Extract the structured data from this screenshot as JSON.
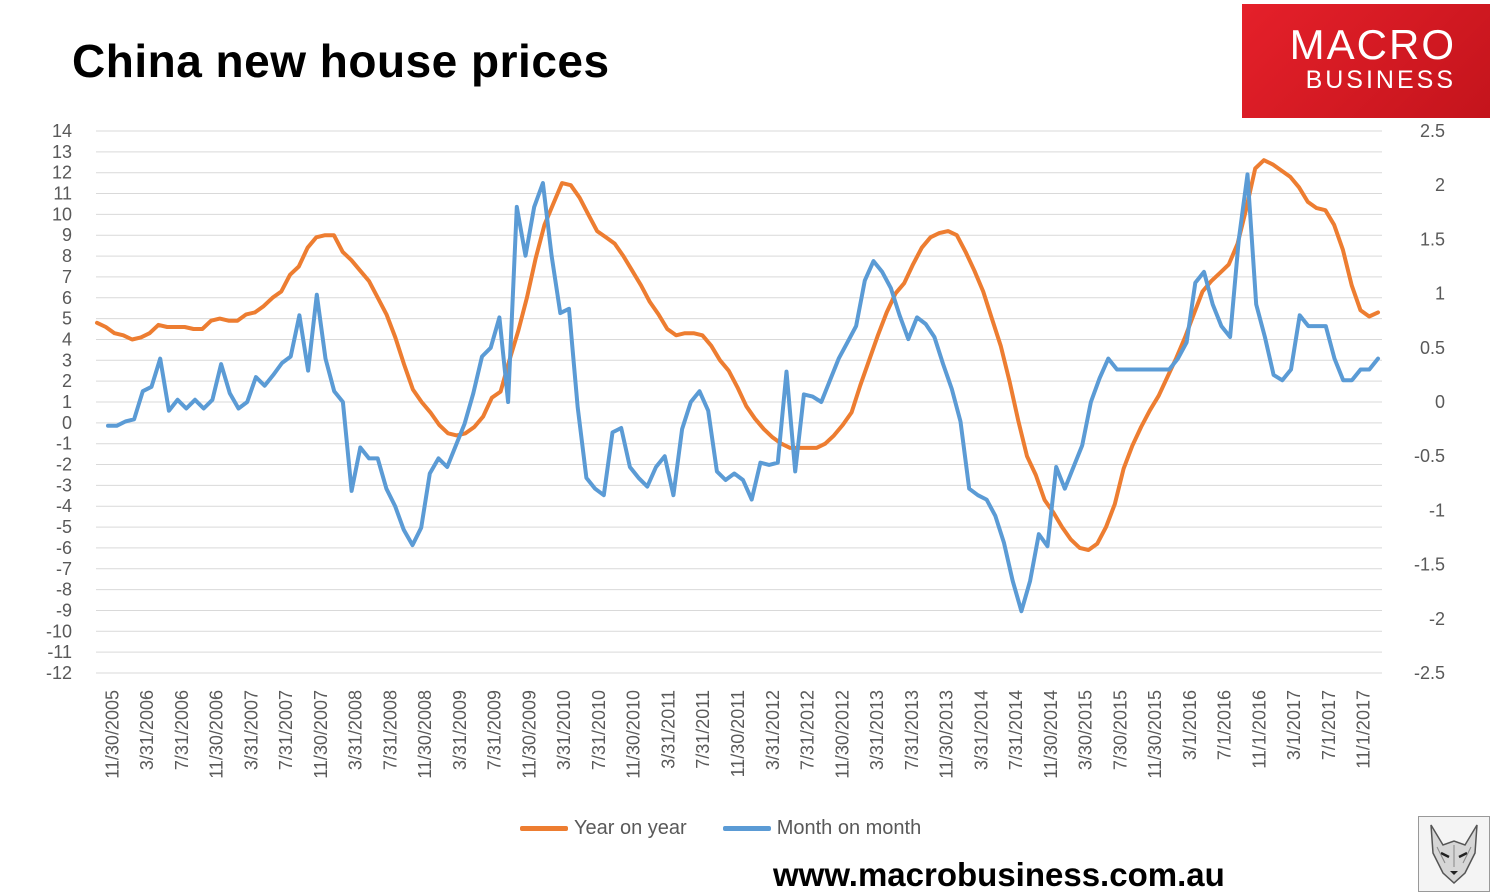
{
  "title": "China new house prices",
  "logo": {
    "line1": "MACRO",
    "line2": "BUSINESS"
  },
  "website": "www.macrobusiness.com.au",
  "legend": {
    "yoy": "Year on year",
    "mom": "Month on month"
  },
  "colors": {
    "yoy": "#ed7d31",
    "mom": "#5b9bd5",
    "logo_bg": "#e01e26"
  },
  "chart_data": {
    "type": "line",
    "x_tick_labels": [
      "11/30/2005",
      "3/31/2006",
      "7/31/2006",
      "11/30/2006",
      "3/31/2007",
      "7/31/2007",
      "11/30/2007",
      "3/31/2008",
      "7/31/2008",
      "11/30/2008",
      "3/31/2009",
      "7/31/2009",
      "11/30/2009",
      "3/31/2010",
      "7/31/2010",
      "11/30/2010",
      "3/31/2011",
      "7/31/2011",
      "11/30/2011",
      "3/31/2012",
      "7/31/2012",
      "11/30/2012",
      "3/31/2013",
      "7/31/2013",
      "11/30/2013",
      "3/31/2014",
      "7/31/2014",
      "11/30/2014",
      "3/30/2015",
      "7/30/2015",
      "11/30/2015",
      "3/1/2016",
      "7/1/2016",
      "11/1/2016",
      "3/1/2017",
      "7/1/2017",
      "11/1/2017"
    ],
    "y_left": {
      "min": -12,
      "max": 14,
      "ticks": [
        14,
        13,
        12,
        11,
        10,
        9,
        8,
        7,
        6,
        5,
        4,
        3,
        2,
        1,
        0,
        -1,
        -2,
        -3,
        -4,
        -5,
        -6,
        -7,
        -8,
        -9,
        -10,
        -11,
        -12
      ]
    },
    "y_right": {
      "min": -2.5,
      "max": 2.5,
      "ticks": [
        "2.5",
        "2",
        "1.5",
        "1",
        "0.5",
        "0",
        "-0.5",
        "-1",
        "-1.5",
        "-2",
        "-2.5"
      ]
    },
    "grid": "horizontal",
    "legend_position": "bottom",
    "series": [
      {
        "name": "Year on year",
        "axis": "left",
        "values": [
          4.8,
          4.6,
          4.3,
          4.2,
          4.0,
          4.1,
          4.3,
          4.7,
          4.6,
          4.6,
          4.6,
          4.5,
          4.5,
          4.9,
          5.0,
          4.9,
          4.9,
          5.2,
          5.3,
          5.6,
          6.0,
          6.3,
          7.1,
          7.5,
          8.4,
          8.9,
          9.0,
          9.0,
          8.2,
          7.8,
          7.3,
          6.8,
          6.0,
          5.2,
          4.1,
          2.8,
          1.6,
          1.0,
          0.5,
          -0.1,
          -0.5,
          -0.6,
          -0.5,
          -0.2,
          0.3,
          1.2,
          1.5,
          3.0,
          4.4,
          6.0,
          7.9,
          9.5,
          10.5,
          11.5,
          11.4,
          10.8,
          10.0,
          9.2,
          8.9,
          8.6,
          8.0,
          7.3,
          6.6,
          5.8,
          5.2,
          4.5,
          4.2,
          4.3,
          4.3,
          4.2,
          3.7,
          3.0,
          2.5,
          1.7,
          0.8,
          0.2,
          -0.3,
          -0.7,
          -1.0,
          -1.2,
          -1.2,
          -1.2,
          -1.2,
          -1.0,
          -0.6,
          -0.1,
          0.5,
          1.8,
          3.0,
          4.2,
          5.3,
          6.2,
          6.7,
          7.6,
          8.4,
          8.9,
          9.1,
          9.2,
          9.0,
          8.2,
          7.3,
          6.3,
          5.0,
          3.7,
          2.0,
          0.1,
          -1.6,
          -2.5,
          -3.7,
          -4.3,
          -5.0,
          -5.6,
          -6.0,
          -6.1,
          -5.8,
          -5.0,
          -3.9,
          -2.2,
          -1.1,
          -0.2,
          0.6,
          1.3,
          2.2,
          3.1,
          4.1,
          5.2,
          6.3,
          6.8,
          7.2,
          7.6,
          8.6,
          10.3,
          12.2,
          12.6,
          12.4,
          12.1,
          11.8,
          11.3,
          10.6,
          10.3,
          10.2,
          9.5,
          8.3,
          6.6,
          5.4,
          5.1,
          5.3
        ]
      },
      {
        "name": "Month on month",
        "axis": "right",
        "values": [
          -0.22,
          -0.22,
          -0.18,
          -0.16,
          0.1,
          0.14,
          0.4,
          -0.08,
          0.02,
          -0.06,
          0.02,
          -0.06,
          0.02,
          0.35,
          0.08,
          -0.06,
          0.0,
          0.23,
          0.15,
          0.25,
          0.36,
          0.42,
          0.8,
          0.29,
          0.99,
          0.4,
          0.1,
          0.0,
          -0.82,
          -0.42,
          -0.52,
          -0.52,
          -0.8,
          -0.96,
          -1.18,
          -1.32,
          -1.16,
          -0.66,
          -0.52,
          -0.6,
          -0.4,
          -0.2,
          0.08,
          0.42,
          0.5,
          0.78,
          0.0,
          1.8,
          1.35,
          1.8,
          2.02,
          1.35,
          0.82,
          0.86,
          -0.05,
          -0.7,
          -0.8,
          -0.86,
          -0.28,
          -0.24,
          -0.6,
          -0.7,
          -0.78,
          -0.6,
          -0.5,
          -0.86,
          -0.25,
          0.0,
          0.1,
          -0.08,
          -0.64,
          -0.72,
          -0.66,
          -0.72,
          -0.9,
          -0.56,
          -0.58,
          -0.56,
          0.28,
          -0.64,
          0.07,
          0.05,
          0.0,
          0.2,
          0.4,
          0.55,
          0.7,
          1.12,
          1.3,
          1.2,
          1.05,
          0.8,
          0.58,
          0.78,
          0.72,
          0.6,
          0.35,
          0.12,
          -0.18,
          -0.8,
          -0.86,
          -0.9,
          -1.05,
          -1.3,
          -1.65,
          -1.93,
          -1.65,
          -1.22,
          -1.33,
          -0.6,
          -0.8,
          -0.6,
          -0.4,
          0.0,
          0.22,
          0.4,
          0.3,
          0.3,
          0.3,
          0.3,
          0.3,
          0.3,
          0.3,
          0.4,
          0.55,
          1.1,
          1.2,
          0.9,
          0.7,
          0.6,
          1.5,
          2.1,
          0.9,
          0.6,
          0.25,
          0.2,
          0.3,
          0.8,
          0.7,
          0.7,
          0.7,
          0.4,
          0.2,
          0.2,
          0.3,
          0.3,
          0.4
        ]
      }
    ]
  }
}
